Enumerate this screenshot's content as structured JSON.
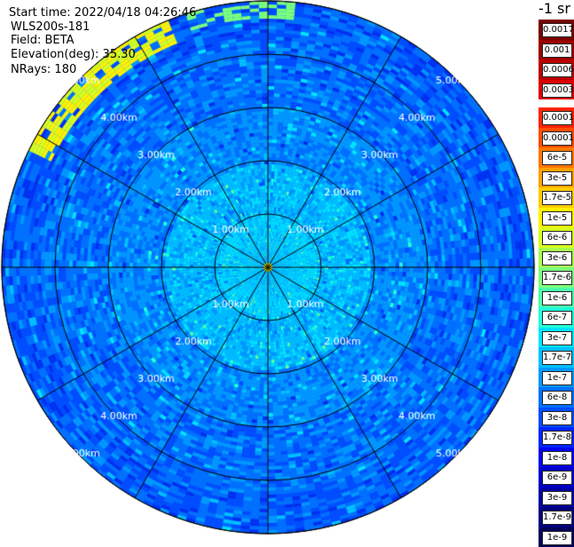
{
  "header": {
    "start_time": "Start time: 2022/04/18 04:26:46",
    "device": "WLS200s-181",
    "field": "Field: BETA",
    "elevation": "Elevation(deg): 35.30",
    "nrays": "NRays: 180"
  },
  "unit_label": "-1 sr",
  "chart_data": {
    "type": "heatmap",
    "subtype": "polar-ppi",
    "range_rings_km": [
      1,
      2,
      3,
      4,
      5
    ],
    "max_range_km": 5.0,
    "ring_labels": [
      "1.00km",
      "2.00km",
      "3.00km",
      "4.00km",
      "5.00km"
    ],
    "radial_lines_deg": [
      0,
      30,
      60,
      90,
      120,
      150,
      180,
      210,
      240,
      270,
      300,
      330
    ],
    "colorbar": {
      "labels": [
        "0.0017",
        "0.001",
        "0.0006",
        "0.0003",
        "0.00017",
        "0.0001",
        "6e-5",
        "3e-5",
        "1.7e-5",
        "1e-5",
        "6e-6",
        "3e-6",
        "1.7e-6",
        "1e-6",
        "6e-7",
        "3e-7",
        "1.7e-7",
        "1e-7",
        "6e-8",
        "3e-8",
        "1.7e-8",
        "1e-8",
        "6e-9",
        "3e-9",
        "1.7e-9",
        "1e-9"
      ],
      "colors": [
        "#7a0000",
        "#9a0000",
        "#bb0000",
        "#dd0000",
        "#ff2400",
        "#ff4d00",
        "#ff7800",
        "#ffa000",
        "#ffcc00",
        "#fff200",
        "#d8ff1f",
        "#a8ff4f",
        "#7cff7c",
        "#4cffaa",
        "#20ffd8",
        "#00e4ff",
        "#00c0ff",
        "#0098ff",
        "#0070ff",
        "#004cff",
        "#0024ff",
        "#0000f0",
        "#0000c8",
        "#0000a4",
        "#00007e",
        "#00005a"
      ]
    }
  }
}
